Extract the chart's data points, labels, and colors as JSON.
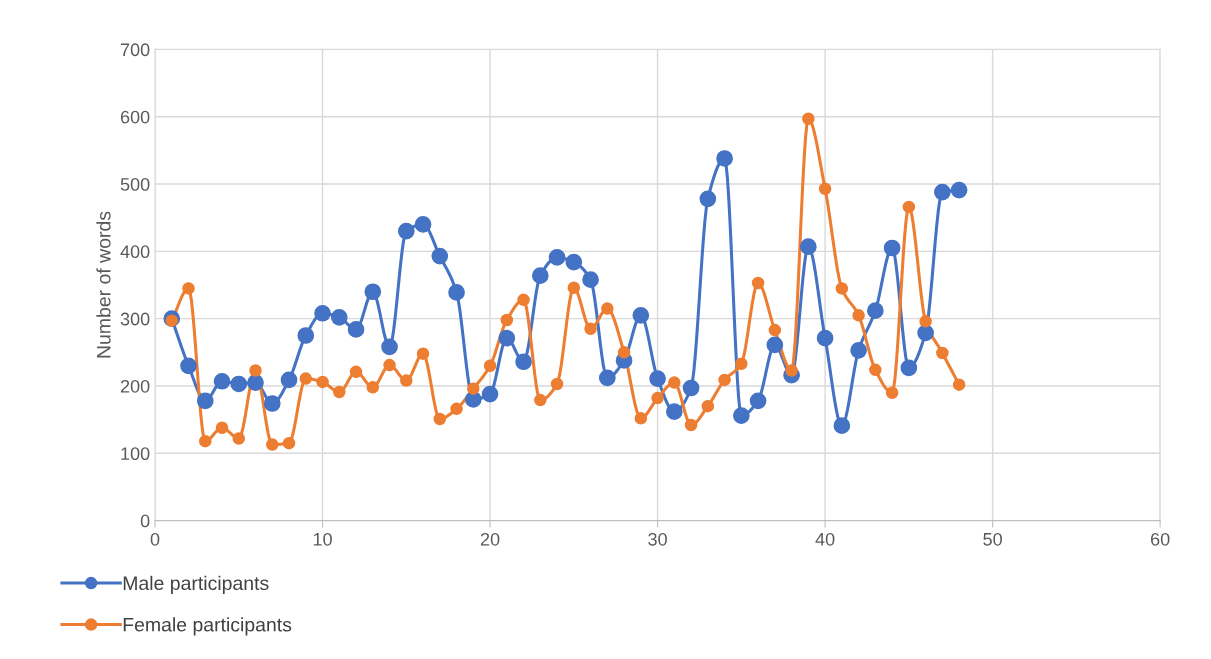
{
  "chart_data": {
    "type": "line",
    "ylabel": "Number of words",
    "x": [
      1,
      2,
      3,
      4,
      5,
      6,
      7,
      8,
      9,
      10,
      11,
      12,
      13,
      14,
      15,
      16,
      17,
      18,
      19,
      20,
      21,
      22,
      23,
      24,
      25,
      26,
      27,
      28,
      29,
      30,
      31,
      32,
      33,
      34,
      35,
      36,
      37,
      38,
      39,
      40,
      41,
      42,
      43,
      44,
      45,
      46,
      47,
      48
    ],
    "series": [
      {
        "name": "Male participants",
        "color": "#4472c4",
        "values": [
          300,
          230,
          178,
          207,
          203,
          205,
          174,
          209,
          275,
          308,
          302,
          284,
          340,
          258,
          430,
          440,
          393,
          339,
          180,
          188,
          271,
          236,
          364,
          391,
          384,
          358,
          212,
          238,
          305,
          211,
          162,
          197,
          478,
          538,
          156,
          178,
          261,
          216,
          407,
          271,
          141,
          253,
          312,
          405,
          227,
          279,
          488,
          491
        ]
      },
      {
        "name": "Female participants",
        "color": "#ed7d31",
        "values": [
          297,
          345,
          118,
          138,
          122,
          223,
          113,
          115,
          211,
          206,
          191,
          221,
          198,
          231,
          208,
          248,
          151,
          166,
          196,
          230,
          298,
          328,
          179,
          203,
          346,
          285,
          315,
          250,
          152,
          182,
          205,
          142,
          170,
          209,
          233,
          353,
          283,
          223,
          597,
          493,
          345,
          305,
          224,
          190,
          466,
          296,
          249,
          202
        ]
      }
    ],
    "xlim": [
      0,
      60
    ],
    "xticks": [
      0,
      10,
      20,
      30,
      40,
      50,
      60
    ],
    "ylim": [
      0,
      700
    ],
    "yticks": [
      0,
      100,
      200,
      300,
      400,
      500,
      600,
      700
    ],
    "grid": true,
    "legend": "bottom left",
    "marker": "circle",
    "line_style": "solid"
  }
}
